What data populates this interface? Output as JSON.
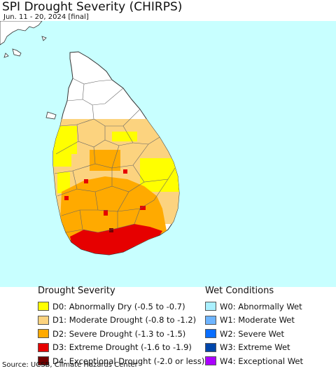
{
  "header": {
    "title": "SPI Drought Severity (CHIRPS)",
    "subtitle": "Jun. 11 - 20, 2024 [final]"
  },
  "map": {
    "ocean_color": "#c8ffff",
    "land_color": "#ffffff",
    "border_color": "#555555"
  },
  "legend": {
    "drought": {
      "title": "Drought Severity",
      "items": [
        {
          "label": "D0: Abnormally Dry (-0.5 to -0.7)",
          "color": "#ffff00"
        },
        {
          "label": "D1: Moderate Drought (-0.8 to -1.2)",
          "color": "#fcd37f"
        },
        {
          "label": "D2: Severe Drought (-1.3 to -1.5)",
          "color": "#ffaa00"
        },
        {
          "label": "D3: Extreme Drought (-1.6 to -1.9)",
          "color": "#e60000"
        },
        {
          "label": "D4: Exceptional Drought (-2.0 or less)",
          "color": "#730000"
        }
      ]
    },
    "wet": {
      "title": "Wet Conditions",
      "items": [
        {
          "label": "W0: Abnormally Wet",
          "color": "#aaf0ff"
        },
        {
          "label": "W1: Moderate Wet",
          "color": "#6eb4ff"
        },
        {
          "label": "W2: Severe Wet",
          "color": "#0a6eff"
        },
        {
          "label": "W3: Extreme Wet",
          "color": "#0046aa"
        },
        {
          "label": "W4: Exceptional Wet",
          "color": "#aa00ff"
        }
      ]
    }
  },
  "footer": {
    "source": "Source: UCSB, Climate Hazards Center"
  }
}
